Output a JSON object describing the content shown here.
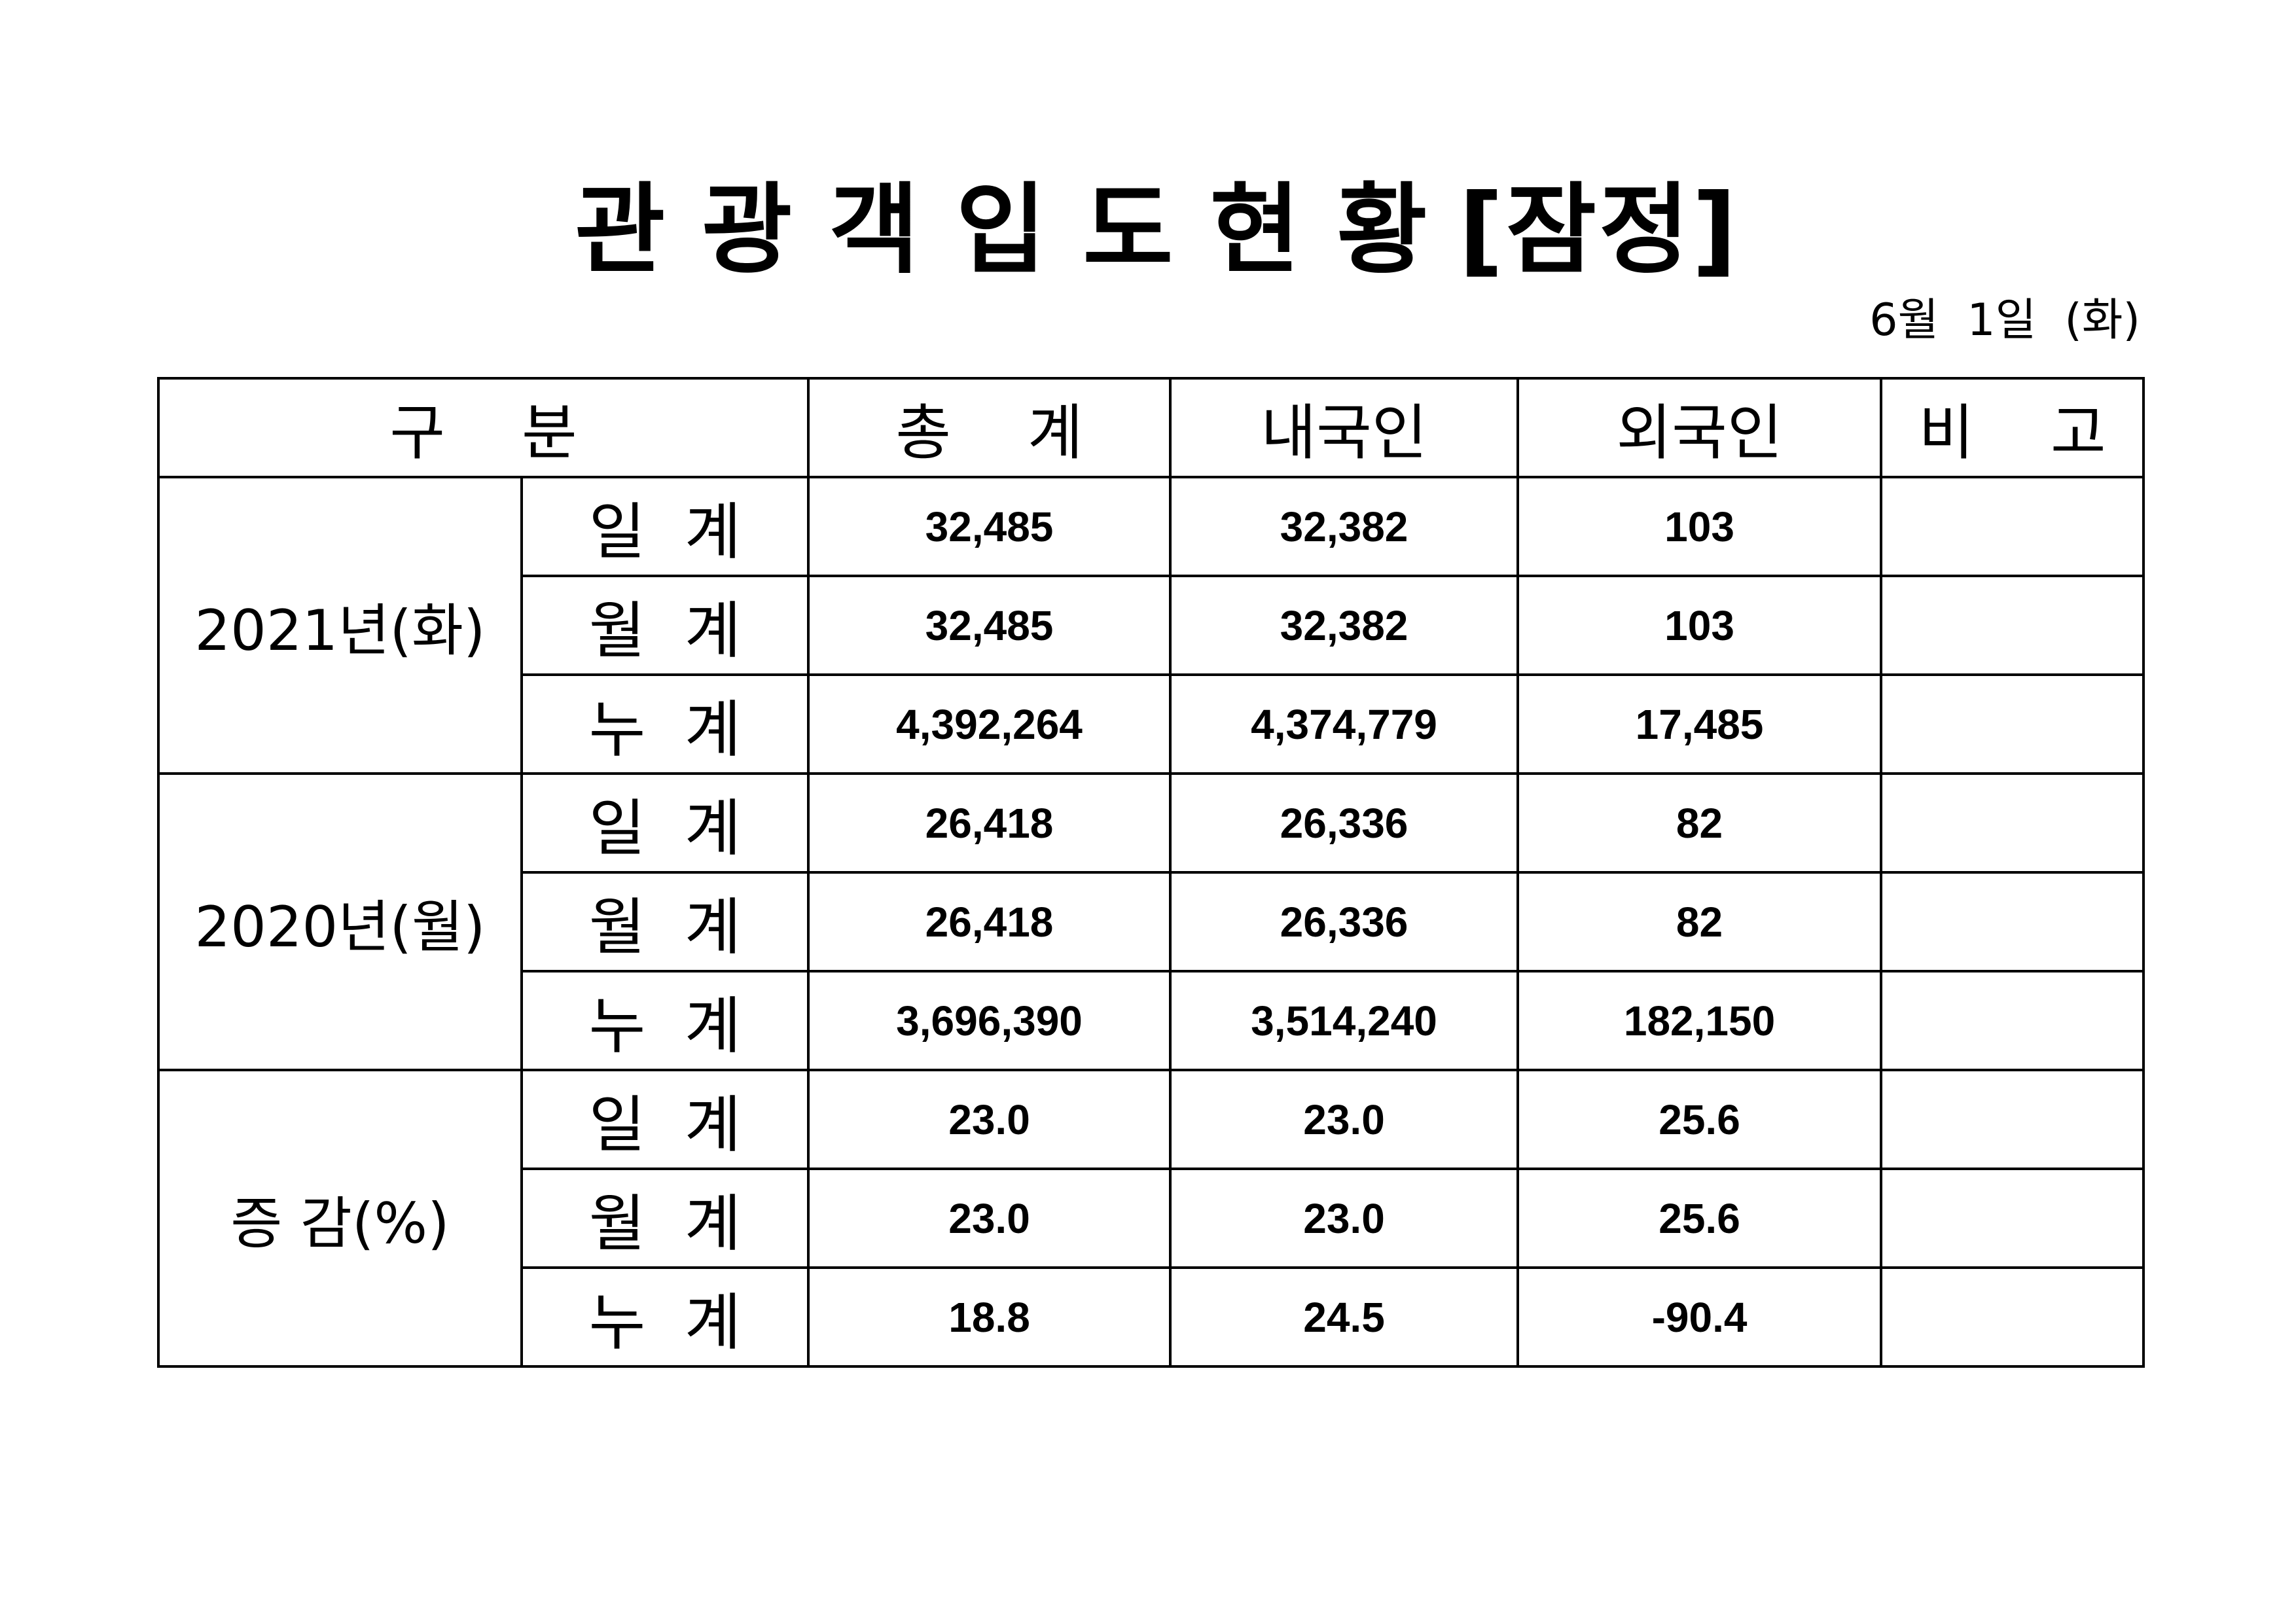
{
  "title": {
    "chars": [
      "관",
      "광",
      "객",
      "입",
      "도",
      "현",
      "황"
    ],
    "suffix": "[잠정]"
  },
  "date": "6월  1일  (화)",
  "header": {
    "category": "구    분",
    "total": "총    계",
    "domestic": "내국인",
    "foreign": "외국인",
    "remarks": "비    고"
  },
  "groups": [
    {
      "label": "2021년(화)",
      "rows": [
        {
          "label": "일  계",
          "total": "32,485",
          "domestic": "32,382",
          "foreign": "103",
          "remarks": ""
        },
        {
          "label": "월  계",
          "total": "32,485",
          "domestic": "32,382",
          "foreign": "103",
          "remarks": ""
        },
        {
          "label": "누  계",
          "total": "4,392,264",
          "domestic": "4,374,779",
          "foreign": "17,485",
          "remarks": ""
        }
      ]
    },
    {
      "label": "2020년(월)",
      "rows": [
        {
          "label": "일  계",
          "total": "26,418",
          "domestic": "26,336",
          "foreign": "82",
          "remarks": ""
        },
        {
          "label": "월  계",
          "total": "26,418",
          "domestic": "26,336",
          "foreign": "82",
          "remarks": ""
        },
        {
          "label": "누  계",
          "total": "3,696,390",
          "domestic": "3,514,240",
          "foreign": "182,150",
          "remarks": ""
        }
      ]
    },
    {
      "label": "증 감(%)",
      "rows": [
        {
          "label": "일  계",
          "total": "23.0",
          "domestic": "23.0",
          "foreign": "25.6",
          "remarks": ""
        },
        {
          "label": "월  계",
          "total": "23.0",
          "domestic": "23.0",
          "foreign": "25.6",
          "remarks": ""
        },
        {
          "label": "누  계",
          "total": "18.8",
          "domestic": "24.5",
          "foreign": "-90.4",
          "remarks": ""
        }
      ]
    }
  ]
}
